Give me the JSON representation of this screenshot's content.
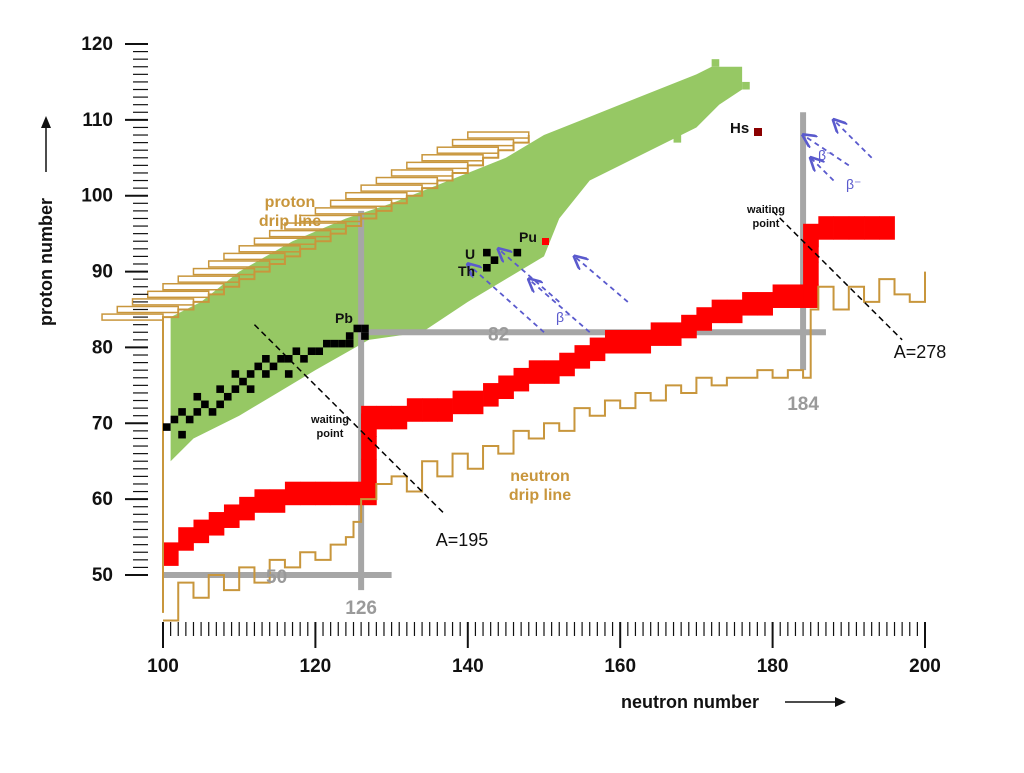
{
  "chart_data": {
    "type": "scatter",
    "xlabel": "neutron number",
    "ylabel": "proton number",
    "xlim": [
      100,
      200
    ],
    "ylim": [
      50,
      120
    ],
    "x_ticks": [
      100,
      120,
      140,
      160,
      180,
      200
    ],
    "y_ticks": [
      50,
      60,
      70,
      80,
      90,
      100,
      110,
      120
    ],
    "x_tick_labels": [
      "100",
      "120",
      "140",
      "160",
      "180",
      "200"
    ],
    "y_tick_labels": [
      "50",
      "60",
      "70",
      "80",
      "90",
      "100",
      "110",
      "120"
    ],
    "grid": false,
    "colors": {
      "known_nuclei": "#96c864",
      "stable_nuclei": "#000000",
      "r_process_path": "#ff0000",
      "drip_lines": "#c8963c",
      "magic_lines": "#a6a6a6",
      "beta_arrows": "#5a5acd",
      "superheavy": "#8b0000"
    },
    "known_nuclei_region": {
      "label": "",
      "polygon": [
        [
          101,
          65
        ],
        [
          101,
          84
        ],
        [
          105,
          86
        ],
        [
          110,
          90
        ],
        [
          117,
          94
        ],
        [
          124,
          97
        ],
        [
          130,
          99
        ],
        [
          135,
          101
        ],
        [
          140,
          103
        ],
        [
          145,
          105
        ],
        [
          150,
          108
        ],
        [
          155,
          110
        ],
        [
          160,
          112
        ],
        [
          165,
          114
        ],
        [
          170,
          116
        ],
        [
          172,
          117
        ],
        [
          176,
          117
        ],
        [
          176,
          114
        ],
        [
          173,
          112
        ],
        [
          170,
          109
        ],
        [
          166,
          107
        ],
        [
          160,
          104
        ],
        [
          156,
          102
        ],
        [
          152,
          97
        ],
        [
          150,
          92
        ],
        [
          145,
          89
        ],
        [
          140,
          86
        ],
        [
          134,
          82
        ],
        [
          127,
          81
        ],
        [
          120,
          77
        ],
        [
          115,
          74
        ],
        [
          110,
          71
        ],
        [
          104,
          68
        ]
      ]
    },
    "stable_nuclei": {
      "label": "",
      "points": [
        [
          100,
          69
        ],
        [
          101,
          70
        ],
        [
          102,
          68
        ],
        [
          102,
          71
        ],
        [
          103,
          70
        ],
        [
          104,
          71
        ],
        [
          104,
          73
        ],
        [
          105,
          72
        ],
        [
          106,
          71
        ],
        [
          107,
          72
        ],
        [
          107,
          74
        ],
        [
          108,
          73
        ],
        [
          109,
          74
        ],
        [
          109,
          76
        ],
        [
          110,
          75
        ],
        [
          111,
          76
        ],
        [
          111,
          74
        ],
        [
          112,
          77
        ],
        [
          113,
          76
        ],
        [
          113,
          78
        ],
        [
          114,
          77
        ],
        [
          115,
          78
        ],
        [
          116,
          78
        ],
        [
          116,
          76
        ],
        [
          117,
          79
        ],
        [
          118,
          78
        ],
        [
          119,
          79
        ],
        [
          120,
          79
        ],
        [
          121,
          80
        ],
        [
          122,
          80
        ],
        [
          123,
          80
        ],
        [
          124,
          81
        ],
        [
          125,
          82
        ],
        [
          126,
          82
        ],
        [
          126,
          81
        ],
        [
          124,
          80
        ],
        [
          142,
          92
        ],
        [
          143,
          91
        ],
        [
          142,
          90
        ],
        [
          146,
          92
        ]
      ]
    },
    "r_process_path": {
      "label": "",
      "points": [
        [
          100,
          53
        ],
        [
          102,
          55
        ],
        [
          104,
          56
        ],
        [
          106,
          57
        ],
        [
          108,
          58
        ],
        [
          110,
          59
        ],
        [
          112,
          60
        ],
        [
          114,
          60
        ],
        [
          116,
          61
        ],
        [
          118,
          61
        ],
        [
          120,
          61
        ],
        [
          122,
          61
        ],
        [
          124,
          61
        ],
        [
          126,
          61
        ],
        [
          126,
          64
        ],
        [
          126,
          67
        ],
        [
          126,
          70
        ],
        [
          126,
          71
        ],
        [
          128,
          71
        ],
        [
          130,
          71
        ],
        [
          132,
          72
        ],
        [
          134,
          72
        ],
        [
          136,
          72
        ],
        [
          138,
          73
        ],
        [
          140,
          73
        ],
        [
          142,
          74
        ],
        [
          144,
          75
        ],
        [
          146,
          76
        ],
        [
          148,
          77
        ],
        [
          150,
          77
        ],
        [
          152,
          78
        ],
        [
          154,
          79
        ],
        [
          156,
          80
        ],
        [
          158,
          81
        ],
        [
          160,
          81
        ],
        [
          162,
          81
        ],
        [
          164,
          82
        ],
        [
          166,
          82
        ],
        [
          168,
          83
        ],
        [
          170,
          84
        ],
        [
          172,
          85
        ],
        [
          174,
          85
        ],
        [
          176,
          86
        ],
        [
          178,
          86
        ],
        [
          180,
          87
        ],
        [
          182,
          87
        ],
        [
          184,
          87
        ],
        [
          184,
          90
        ],
        [
          184,
          93
        ],
        [
          184,
          95
        ],
        [
          186,
          96
        ],
        [
          188,
          96
        ],
        [
          190,
          96
        ],
        [
          192,
          96
        ],
        [
          194,
          96
        ]
      ]
    },
    "proton_drip_line": {
      "label": "proton drip line",
      "points": [
        [
          100,
          45
        ],
        [
          100,
          84
        ],
        [
          102,
          85
        ],
        [
          104,
          86
        ],
        [
          106,
          87
        ],
        [
          108,
          88
        ],
        [
          110,
          89
        ],
        [
          112,
          90
        ],
        [
          114,
          91
        ],
        [
          116,
          92
        ],
        [
          118,
          93
        ],
        [
          120,
          94
        ],
        [
          122,
          95
        ],
        [
          124,
          96
        ],
        [
          126,
          97
        ],
        [
          128,
          98
        ],
        [
          130,
          99
        ],
        [
          132,
          100
        ],
        [
          134,
          101
        ],
        [
          136,
          102
        ],
        [
          138,
          103
        ],
        [
          140,
          104
        ],
        [
          142,
          105
        ],
        [
          144,
          106
        ],
        [
          146,
          107
        ],
        [
          148,
          108
        ]
      ]
    },
    "neutron_drip_line": {
      "label": "neutron drip line",
      "points": [
        [
          100,
          44
        ],
        [
          102,
          49
        ],
        [
          104,
          47
        ],
        [
          106,
          50
        ],
        [
          108,
          48
        ],
        [
          110,
          51
        ],
        [
          112,
          49
        ],
        [
          114,
          52
        ],
        [
          116,
          51
        ],
        [
          118,
          53
        ],
        [
          120,
          52
        ],
        [
          122,
          54
        ],
        [
          124,
          55
        ],
        [
          125,
          57
        ],
        [
          126,
          60
        ],
        [
          128,
          62
        ],
        [
          130,
          63
        ],
        [
          132,
          61
        ],
        [
          134,
          65
        ],
        [
          136,
          63
        ],
        [
          138,
          66
        ],
        [
          140,
          64
        ],
        [
          142,
          67
        ],
        [
          144,
          66
        ],
        [
          146,
          69
        ],
        [
          148,
          68
        ],
        [
          150,
          70
        ],
        [
          152,
          69
        ],
        [
          154,
          72
        ],
        [
          156,
          71
        ],
        [
          158,
          73
        ],
        [
          160,
          72
        ],
        [
          162,
          74
        ],
        [
          164,
          73
        ],
        [
          166,
          75
        ],
        [
          168,
          74
        ],
        [
          170,
          76
        ],
        [
          172,
          75
        ],
        [
          174,
          76
        ],
        [
          176,
          76
        ],
        [
          178,
          77
        ],
        [
          180,
          76
        ],
        [
          182,
          77
        ],
        [
          184,
          76
        ],
        [
          185,
          85
        ],
        [
          186,
          88
        ],
        [
          188,
          85
        ],
        [
          190,
          88
        ],
        [
          192,
          86
        ],
        [
          194,
          89
        ],
        [
          196,
          87
        ],
        [
          198,
          86
        ],
        [
          200,
          90
        ]
      ]
    },
    "magic_numbers": {
      "neutron": [
        {
          "n": 126,
          "label": "126"
        },
        {
          "n": 184,
          "label": "184"
        }
      ],
      "proton": [
        {
          "z": 50,
          "label": "50"
        },
        {
          "z": 82,
          "label": "82"
        }
      ]
    },
    "isobar_lines": [
      {
        "label": "A=195",
        "from": [
          112,
          83
        ],
        "to": [
          137,
          58
        ]
      },
      {
        "label": "A=278",
        "from": [
          180,
          98
        ],
        "to": [
          197,
          81
        ]
      }
    ],
    "waiting_points": [
      {
        "label": "waiting point",
        "n": 126,
        "z": 70
      },
      {
        "label": "waiting point",
        "n": 184,
        "z": 96
      }
    ],
    "elements": [
      {
        "symbol": "Pb",
        "n": 126,
        "z": 82
      },
      {
        "symbol": "U",
        "n": 143,
        "z": 92
      },
      {
        "symbol": "Th",
        "n": 142,
        "z": 90
      },
      {
        "symbol": "Pu",
        "n": 150,
        "z": 94
      },
      {
        "symbol": "Hs",
        "n": 178,
        "z": 108
      }
    ],
    "beta_decay": {
      "label": "β⁻",
      "arrows": [
        {
          "from": [
            150,
            82
          ],
          "to": [
            140,
            91
          ]
        },
        {
          "from": [
            156,
            82
          ],
          "to": [
            148,
            89
          ]
        },
        {
          "from": [
            152,
            86
          ],
          "to": [
            144,
            93
          ]
        },
        {
          "from": [
            161,
            86
          ],
          "to": [
            154,
            92
          ]
        },
        {
          "from": [
            190,
            104
          ],
          "to": [
            184,
            108
          ]
        },
        {
          "from": [
            188,
            102
          ],
          "to": [
            185,
            105
          ]
        },
        {
          "from": [
            193,
            105
          ],
          "to": [
            188,
            110
          ]
        }
      ]
    }
  }
}
